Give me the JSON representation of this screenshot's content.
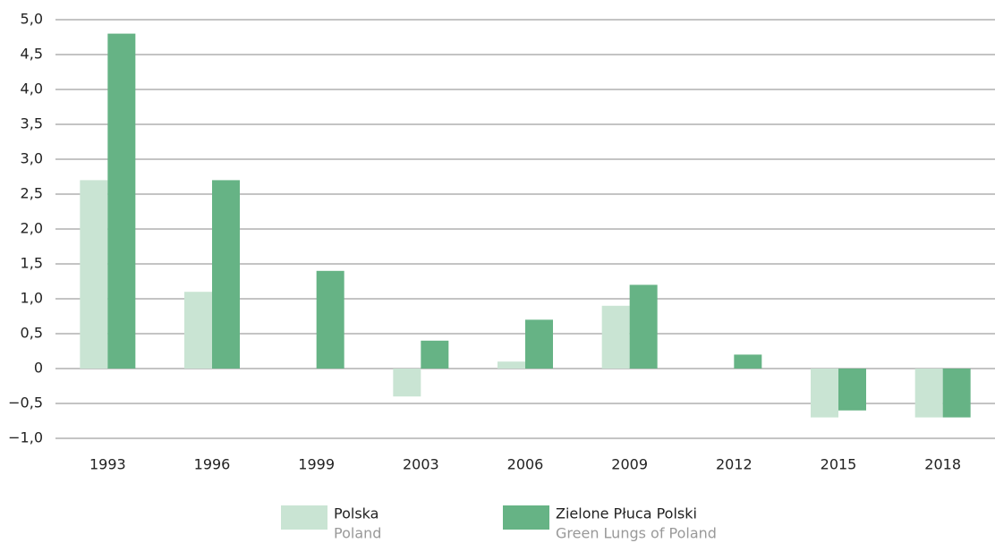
{
  "chart_data": {
    "type": "bar",
    "categories": [
      "1993",
      "1996",
      "1999",
      "2003",
      "2006",
      "2009",
      "2012",
      "2015",
      "2018"
    ],
    "series": [
      {
        "name": "Polska",
        "name_en": "Poland",
        "color": "#c9e4d3",
        "values": [
          2.7,
          1.1,
          0,
          -0.4,
          0.1,
          0.9,
          0,
          -0.7,
          -0.7
        ]
      },
      {
        "name": "Zielone Płuca Polski",
        "name_en": "Green Lungs of Poland",
        "color": "#66b385",
        "values": [
          4.8,
          2.7,
          1.4,
          0.4,
          0.7,
          1.2,
          0.2,
          -0.6,
          -0.7
        ]
      }
    ],
    "ylim": [
      -1,
      5
    ],
    "yticks": [
      {
        "value": -1,
        "label": "−1,0"
      },
      {
        "value": -0.5,
        "label": "−0,5"
      },
      0,
      {
        "value": 0.5,
        "label": "0,5"
      },
      {
        "value": 1,
        "label": "1,0"
      },
      {
        "value": 1.5,
        "label": "1,5"
      },
      {
        "value": 2,
        "label": "2,0"
      },
      {
        "value": 2.5,
        "label": "2,5"
      },
      {
        "value": 3,
        "label": "3,0"
      },
      {
        "value": 3.5,
        "label": "3,5"
      },
      {
        "value": 4,
        "label": "4,0"
      },
      {
        "value": 4.5,
        "label": "4,5"
      },
      {
        "value": 5,
        "label": "5,0"
      }
    ],
    "grid": true,
    "legend": "bottom"
  }
}
